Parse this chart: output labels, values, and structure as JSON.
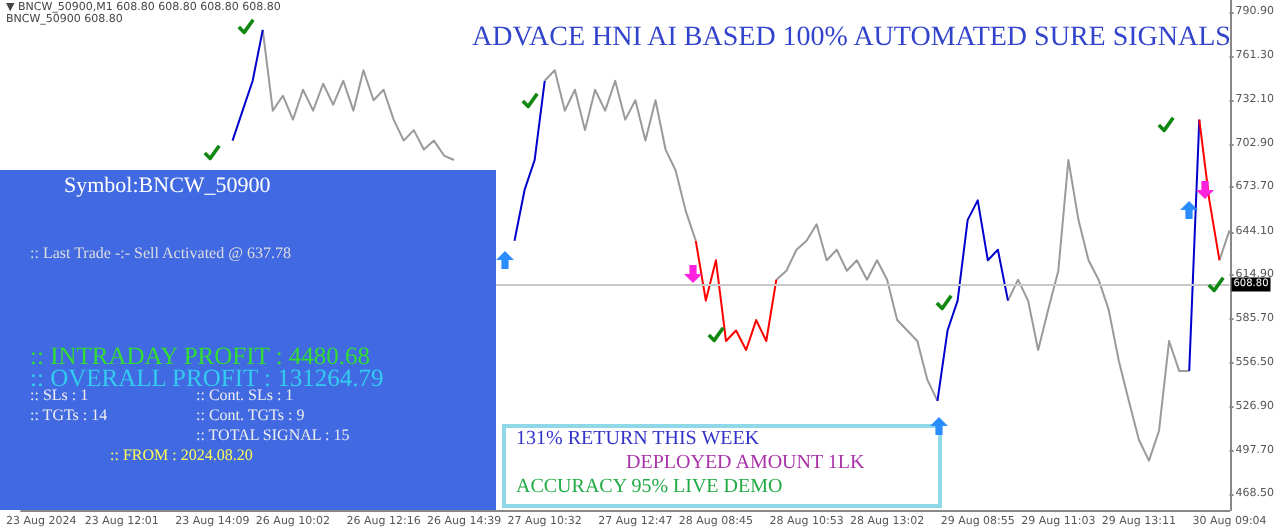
{
  "chart_data": {
    "type": "line",
    "title": "ADVACE HNI AI BASED 100% AUTOMATED SURE SIGNALS",
    "categories": [
      null,
      null,
      "23 Aug 2024",
      null,
      null,
      null,
      null,
      null,
      null,
      null,
      "23 Aug 12:01",
      null,
      null,
      null,
      null,
      null,
      null,
      null,
      null,
      "23 Aug 14:09",
      null,
      null,
      null,
      null,
      null,
      null,
      null,
      "26 Aug 10:02",
      null,
      null,
      null,
      null,
      null,
      null,
      null,
      null,
      "26 Aug 12:16",
      null,
      null,
      null,
      null,
      null,
      null,
      null,
      "26 Aug 14:39",
      null,
      null,
      null,
      null,
      null,
      null,
      null,
      "27 Aug 10:32",
      null,
      null,
      null,
      null,
      null,
      null,
      null,
      null,
      "27 Aug 12:47",
      null,
      null,
      null,
      null,
      null,
      null,
      null,
      "28 Aug 08:45",
      null,
      null,
      null,
      null,
      null,
      null,
      null,
      null,
      "28 Aug 10:53",
      null,
      null,
      null,
      null,
      null,
      null,
      null,
      "28 Aug 13:02",
      null,
      null,
      null,
      null,
      null,
      null,
      null,
      null,
      "29 Aug 08:55",
      null,
      null,
      null,
      null,
      null,
      null,
      null,
      "29 Aug 11:03",
      null,
      null,
      null,
      null,
      null,
      null,
      null,
      "29 Aug 13:11",
      null,
      null,
      null,
      null,
      null,
      null,
      null,
      null,
      "30 Aug 09:04"
    ],
    "series": [
      {
        "color": "#9a9a9a",
        "values": [
          null,
          null,
          null,
          null,
          null,
          null,
          null,
          null,
          null,
          null,
          null,
          null,
          null,
          null,
          null,
          null,
          null,
          null,
          null,
          null,
          null,
          null,
          null,
          null,
          779,
          725,
          735,
          719,
          739,
          725,
          743,
          729,
          745,
          725,
          752,
          732,
          739,
          719,
          705,
          712,
          699,
          705,
          695,
          692,
          null,
          null,
          null,
          null,
          null,
          null,
          null,
          null,
          745,
          752,
          725,
          739,
          712,
          739,
          725,
          745,
          719,
          732,
          705,
          732,
          699,
          685,
          658,
          638,
          null,
          null,
          null,
          null,
          null,
          null,
          null,
          612,
          618,
          632,
          638,
          649,
          625,
          632,
          618,
          625,
          612,
          625,
          612,
          585,
          578,
          571,
          545,
          531,
          null,
          null,
          null,
          null,
          null,
          null,
          598,
          612,
          598,
          565,
          592,
          618,
          692,
          652,
          625,
          612,
          592,
          558,
          531,
          505,
          491,
          511,
          571,
          551,
          551,
          null,
          null,
          625,
          645
        ]
      },
      {
        "color": "#0000cc",
        "values": [
          null,
          null,
          null,
          null,
          null,
          null,
          null,
          null,
          null,
          null,
          null,
          null,
          null,
          null,
          null,
          null,
          null,
          null,
          null,
          null,
          null,
          705,
          725,
          745,
          779,
          null,
          null,
          null,
          null,
          null,
          null,
          null,
          null,
          null,
          null,
          null,
          null,
          null,
          null,
          null,
          null,
          null,
          null,
          null,
          null,
          null,
          null,
          null,
          null,
          638,
          672,
          692,
          745,
          null,
          null,
          null,
          null,
          null,
          null,
          null,
          null,
          null,
          null,
          null,
          null,
          null,
          null,
          null,
          null,
          null,
          null,
          null,
          null,
          null,
          null,
          null,
          null,
          null,
          null,
          null,
          null,
          null,
          null,
          null,
          null,
          null,
          null,
          null,
          null,
          null,
          null,
          531,
          578,
          598,
          652,
          665,
          625,
          632,
          598,
          null,
          null,
          null,
          null,
          null,
          null,
          null,
          null,
          null,
          null,
          null,
          null,
          null,
          null,
          null,
          null,
          null,
          551,
          719,
          null,
          null,
          null
        ]
      },
      {
        "color": "#ff0000",
        "values": [
          null,
          null,
          null,
          null,
          null,
          null,
          null,
          null,
          null,
          null,
          null,
          null,
          null,
          null,
          null,
          null,
          null,
          null,
          null,
          null,
          null,
          null,
          null,
          null,
          null,
          null,
          null,
          null,
          null,
          null,
          null,
          null,
          null,
          null,
          null,
          null,
          null,
          null,
          null,
          null,
          null,
          null,
          null,
          null,
          null,
          null,
          null,
          null,
          null,
          null,
          null,
          null,
          null,
          null,
          null,
          null,
          null,
          null,
          null,
          null,
          null,
          null,
          null,
          null,
          null,
          null,
          null,
          638,
          598,
          625,
          571,
          578,
          565,
          585,
          571,
          612,
          null,
          null,
          null,
          null,
          null,
          null,
          null,
          null,
          null,
          null,
          null,
          null,
          null,
          null,
          null,
          null,
          null,
          null,
          null,
          null,
          null,
          null,
          null,
          null,
          null,
          null,
          null,
          null,
          null,
          null,
          null,
          null,
          null,
          null,
          null,
          null,
          null,
          null,
          null,
          null,
          null,
          719,
          665,
          625,
          null
        ]
      }
    ],
    "ylim": [
      458,
      799
    ],
    "yticks": [
      {
        "value": 790.9,
        "label": "790.90"
      },
      {
        "value": 761.3,
        "label": "761.30"
      },
      {
        "value": 732.1,
        "label": "732.10"
      },
      {
        "value": 702.9,
        "label": "702.90"
      },
      {
        "value": 673.7,
        "label": "673.70"
      },
      {
        "value": 644.1,
        "label": "644.10"
      },
      {
        "value": 614.9,
        "label": "614.90"
      },
      {
        "value": 585.7,
        "label": "585.70"
      },
      {
        "value": 556.5,
        "label": "556.50"
      },
      {
        "value": 526.9,
        "label": "526.90"
      },
      {
        "value": 497.7,
        "label": "497.70"
      },
      {
        "value": 468.5,
        "label": "468.50"
      }
    ],
    "ref_lines": [
      {
        "axis": "y",
        "value": 608.8,
        "label": "608.80",
        "color": "#c8c8c8"
      }
    ],
    "annotations": [
      "▼ BNCW_50900,M1  608.80 608.80 608.80 608.80",
      "BNCW_50900 608.80",
      "Symbol:BNCW_50900",
      ":: Last Trade -:- Sell Activated @ 637.78",
      ":: INTRADAY PROFIT : 4480.68",
      ":: OVERALL PROFIT : 131264.79",
      ":: SLs : 1",
      ":: Cont. SLs : 1",
      ":: TGTs : 14",
      ":: Cont. TGTs : 9",
      ":: TOTAL SIGNAL : 15",
      ":: FROM : 2024.08.20",
      "131% RETURN THIS WEEK",
      "DEPLOYED AMOUNT 1LK",
      "ACCURACY 95% LIVE DEMO"
    ]
  }
}
